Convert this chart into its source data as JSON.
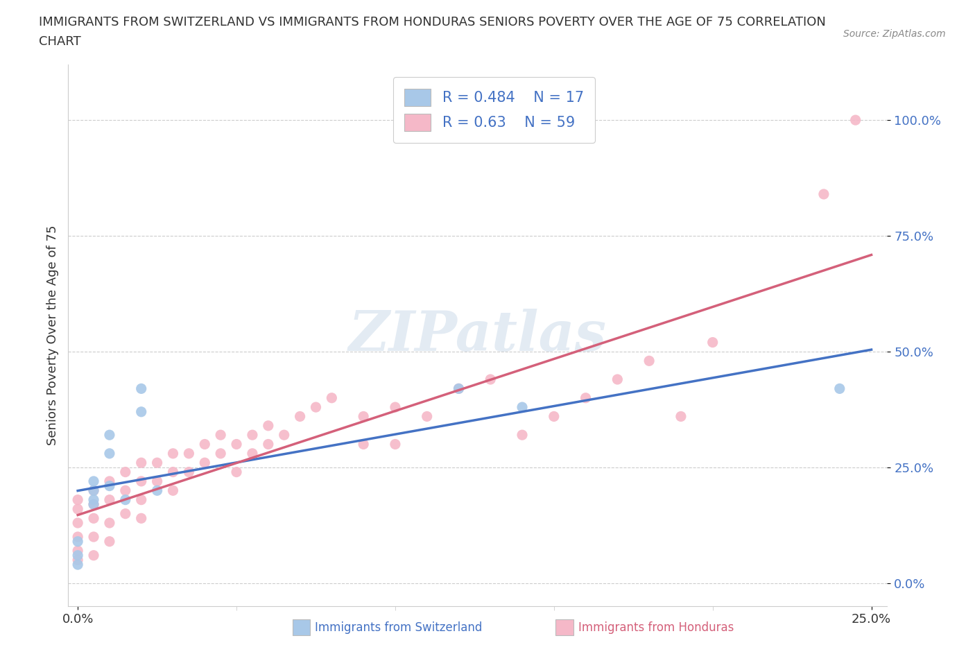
{
  "title_line1": "IMMIGRANTS FROM SWITZERLAND VS IMMIGRANTS FROM HONDURAS SENIORS POVERTY OVER THE AGE OF 75 CORRELATION",
  "title_line2": "CHART",
  "source": "Source: ZipAtlas.com",
  "ylabel": "Seniors Poverty Over the Age of 75",
  "xlim": [
    -0.003,
    0.255
  ],
  "ylim": [
    -0.05,
    1.12
  ],
  "xtick_labels": [
    "0.0%",
    "25.0%"
  ],
  "ytick_labels": [
    "0.0%",
    "25.0%",
    "50.0%",
    "75.0%",
    "100.0%"
  ],
  "ytick_values": [
    0.0,
    0.25,
    0.5,
    0.75,
    1.0
  ],
  "xtick_values": [
    0.0,
    0.25
  ],
  "switzerland_R": 0.484,
  "switzerland_N": 17,
  "honduras_R": 0.63,
  "honduras_N": 59,
  "switzerland_color": "#a8c8e8",
  "honduras_color": "#f5b8c8",
  "switzerland_line_color": "#4472c4",
  "honduras_line_color": "#d4607a",
  "watermark": "ZIPatlas",
  "switzerland_x": [
    0.0,
    0.0,
    0.0,
    0.005,
    0.005,
    0.005,
    0.005,
    0.01,
    0.01,
    0.01,
    0.015,
    0.02,
    0.02,
    0.025,
    0.12,
    0.14,
    0.24
  ],
  "switzerland_y": [
    0.06,
    0.09,
    0.04,
    0.17,
    0.2,
    0.22,
    0.18,
    0.28,
    0.32,
    0.21,
    0.18,
    0.37,
    0.42,
    0.2,
    0.42,
    0.38,
    0.42
  ],
  "honduras_x": [
    0.0,
    0.0,
    0.0,
    0.0,
    0.0,
    0.0,
    0.005,
    0.005,
    0.005,
    0.005,
    0.005,
    0.01,
    0.01,
    0.01,
    0.01,
    0.015,
    0.015,
    0.015,
    0.02,
    0.02,
    0.02,
    0.02,
    0.025,
    0.025,
    0.03,
    0.03,
    0.03,
    0.035,
    0.035,
    0.04,
    0.04,
    0.045,
    0.045,
    0.05,
    0.05,
    0.055,
    0.055,
    0.06,
    0.06,
    0.065,
    0.07,
    0.075,
    0.08,
    0.09,
    0.09,
    0.1,
    0.1,
    0.11,
    0.12,
    0.13,
    0.14,
    0.15,
    0.16,
    0.17,
    0.18,
    0.19,
    0.2,
    0.235,
    0.245
  ],
  "honduras_y": [
    0.05,
    0.07,
    0.1,
    0.13,
    0.16,
    0.18,
    0.06,
    0.1,
    0.14,
    0.17,
    0.2,
    0.09,
    0.13,
    0.18,
    0.22,
    0.15,
    0.2,
    0.24,
    0.14,
    0.18,
    0.22,
    0.26,
    0.22,
    0.26,
    0.2,
    0.24,
    0.28,
    0.24,
    0.28,
    0.26,
    0.3,
    0.28,
    0.32,
    0.24,
    0.3,
    0.28,
    0.32,
    0.3,
    0.34,
    0.32,
    0.36,
    0.38,
    0.4,
    0.3,
    0.36,
    0.3,
    0.38,
    0.36,
    0.42,
    0.44,
    0.32,
    0.36,
    0.4,
    0.44,
    0.48,
    0.36,
    0.52,
    0.84,
    1.0
  ],
  "background_color": "#ffffff",
  "grid_color": "#cccccc",
  "title_color": "#333333",
  "legend_text_color": "#4472c4",
  "ytick_color": "#4472c4"
}
